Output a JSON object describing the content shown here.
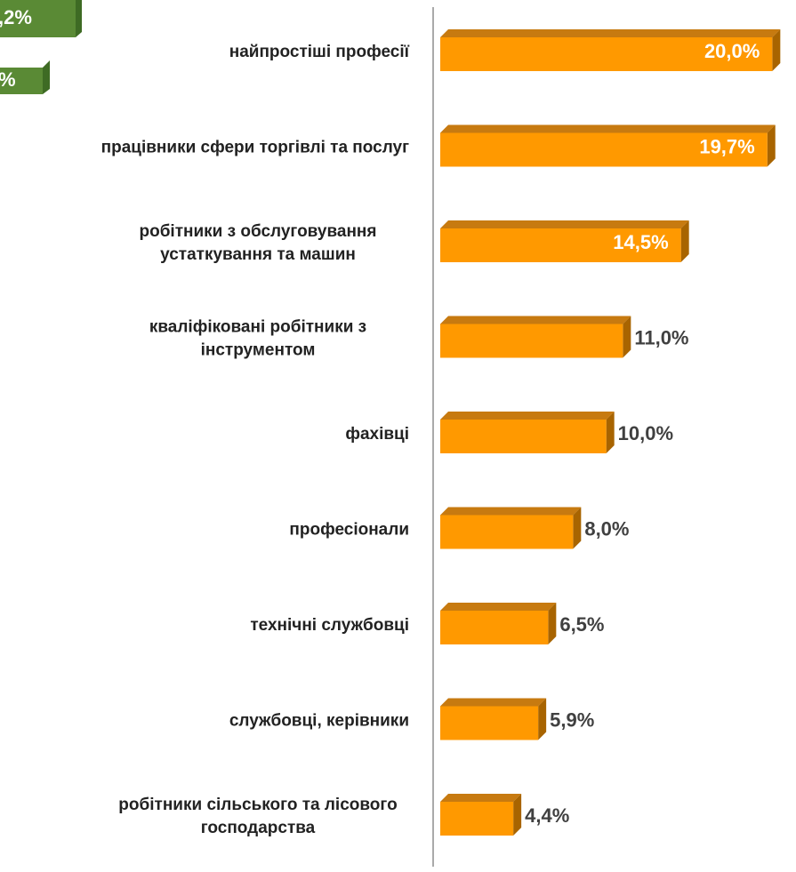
{
  "chart_data": {
    "type": "bar",
    "orientation": "horizontal",
    "categories": [
      [
        "найпростіші професії"
      ],
      [
        "працівники сфери торгівлі та послуг"
      ],
      [
        "робітники з обслуговування",
        "устаткування та машин"
      ],
      [
        "кваліфіковані робітники з",
        "інструментом"
      ],
      [
        "фахівці"
      ],
      [
        "професіонали"
      ],
      [
        "технічні службовці"
      ],
      [
        "службовці, керівники"
      ],
      [
        "робітники сільського та лісового",
        "господарства"
      ]
    ],
    "values": [
      20.0,
      19.7,
      14.5,
      11.0,
      10.0,
      8.0,
      6.5,
      5.9,
      4.4
    ],
    "value_labels": [
      "20,0%",
      "19,7%",
      "14,5%",
      "11,0%",
      "10,0%",
      "8,0%",
      "6,5%",
      "5,9%",
      "4,4%"
    ],
    "color": "#ff9900",
    "xlim": [
      0,
      21
    ],
    "annotations": [
      ",2%",
      "%"
    ]
  }
}
